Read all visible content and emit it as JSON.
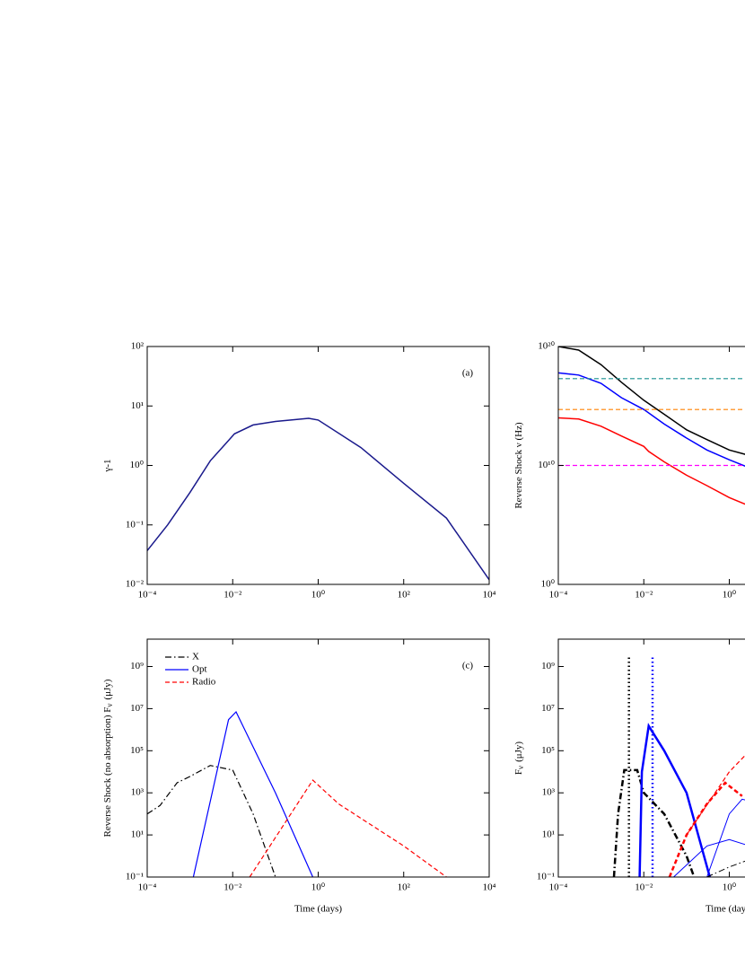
{
  "chart_data": [
    {
      "type": "line",
      "label": "(a)",
      "ylabel": "γ-1",
      "log_x": true,
      "log_y": true,
      "xlim": [
        0.0001,
        10000
      ],
      "ylim": [
        0.01,
        100
      ],
      "xticks": [
        {
          "value": 0.0001,
          "label": "10⁻⁴"
        },
        {
          "value": 0.01,
          "label": "10⁻²"
        },
        {
          "value": 1,
          "label": "10⁰"
        },
        {
          "value": 100,
          "label": "10²"
        },
        {
          "value": 10000,
          "label": "10⁴"
        }
      ],
      "yticks": [
        {
          "value": 0.01,
          "label": "10⁻²"
        },
        {
          "value": 0.1,
          "label": "10⁻¹"
        },
        {
          "value": 1,
          "label": "10⁰"
        },
        {
          "value": 10,
          "label": "10¹"
        },
        {
          "value": 100,
          "label": "10²"
        }
      ],
      "series": [
        {
          "color": "#1a1a8c",
          "linestyle": "solid",
          "linewidth": 1.5,
          "x": [
            0.0001,
            0.0003,
            0.001,
            0.003,
            0.011,
            0.03,
            0.1,
            0.6,
            1,
            10,
            100,
            1000,
            10000
          ],
          "values": [
            0.037,
            0.1,
            0.35,
            1.2,
            3.4,
            4.8,
            5.5,
            6.2,
            5.8,
            2,
            0.5,
            0.13,
            0.012
          ]
        }
      ]
    },
    {
      "type": "line",
      "ylabel": "Reverse Shock ν (Hz)",
      "log_x": true,
      "log_y": true,
      "xlim": [
        0.0001,
        10000
      ],
      "ylim": [
        1,
        1e+20
      ],
      "xticks": [
        {
          "value": 0.0001,
          "label": "10⁻⁴"
        },
        {
          "value": 0.01,
          "label": "10⁻²"
        },
        {
          "value": 1,
          "label": "10⁰"
        }
      ],
      "yticks": [
        {
          "value": 1,
          "label": "10⁰"
        },
        {
          "value": 10000000000,
          "label": "10¹⁰"
        },
        {
          "value": 1e+20,
          "label": "10²⁰"
        }
      ],
      "series": [
        {
          "color": "#000000",
          "linestyle": "solid",
          "linewidth": 1.5,
          "x": [
            0.0001,
            0.0003,
            0.001,
            0.003,
            0.01,
            0.03,
            0.1,
            0.3,
            1,
            2.5
          ],
          "values": [
            1e+20,
            5e+19,
            3e+18,
            1e+17,
            3000000000000000.0,
            200000000000000.0,
            10000000000000.0,
            1500000000000.0,
            200000000000.0,
            80000000000.0
          ]
        },
        {
          "color": "#0000ff",
          "linestyle": "solid",
          "linewidth": 1.5,
          "x": [
            0.0001,
            0.0003,
            0.001,
            0.003,
            0.01,
            0.03,
            0.1,
            0.3,
            1,
            2.5
          ],
          "values": [
            6e+17,
            4e+17,
            8e+16,
            5000000000000000.0,
            500000000000000.0,
            30000000000000.0,
            2000000000000.0,
            200000000000.0,
            30000000000.0,
            8000000000.0
          ]
        },
        {
          "color": "#ff0000",
          "linestyle": "solid",
          "linewidth": 1.5,
          "x": [
            0.0001,
            0.0003,
            0.001,
            0.003,
            0.01,
            0.013,
            0.03,
            0.1,
            0.3,
            1,
            2.5
          ],
          "values": [
            100000000000000.0,
            80000000000000.0,
            20000000000000.0,
            3000000000000.0,
            400000000000.0,
            150000000000.0,
            20000000000.0,
            1500000000.0,
            200000000.0,
            20000000.0,
            5000000.0
          ]
        },
        {
          "color": "#1a9090",
          "linestyle": "dashed",
          "linewidth": 1.2,
          "x": [
            0.0001,
            2.5
          ],
          "values": [
            2e+17,
            2e+17
          ]
        },
        {
          "color": "#ff8000",
          "linestyle": "dashed",
          "linewidth": 1.2,
          "x": [
            0.0001,
            2.5
          ],
          "values": [
            500000000000000.0,
            500000000000000.0
          ]
        },
        {
          "color": "#ff00ff",
          "linestyle": "dashed",
          "linewidth": 1.2,
          "x": [
            0.0001,
            2.5
          ],
          "values": [
            10000000000.0,
            10000000000.0
          ]
        }
      ]
    },
    {
      "type": "line",
      "label": "(c)",
      "xlabel": "Time (days)",
      "ylabel": "Reverse Shock (no absorption) F",
      "ylabel_sub": "ν",
      "ylabel_unit": "(μJy)",
      "log_x": true,
      "log_y": true,
      "xlim": [
        0.0001,
        10000
      ],
      "ylim": [
        0.1,
        20000000000
      ],
      "legend": "upper left",
      "xticks": [
        {
          "value": 0.0001,
          "label": "10⁻⁴"
        },
        {
          "value": 0.01,
          "label": "10⁻²"
        },
        {
          "value": 1,
          "label": "10⁰"
        },
        {
          "value": 100,
          "label": "10²"
        },
        {
          "value": 10000,
          "label": "10⁴"
        }
      ],
      "yticks": [
        {
          "value": 0.1,
          "label": "10⁻¹"
        },
        {
          "value": 10,
          "label": "10¹"
        },
        {
          "value": 1000,
          "label": "10³"
        },
        {
          "value": 100000,
          "label": "10⁵"
        },
        {
          "value": 10000000,
          "label": "10⁷"
        },
        {
          "value": 1000000000,
          "label": "10⁹"
        }
      ],
      "series": [
        {
          "name": "X",
          "color": "#000000",
          "linestyle": "dashdot",
          "linewidth": 1.2,
          "x": [
            0.0001,
            0.0002,
            0.0005,
            0.001,
            0.003,
            0.01,
            0.03,
            0.1
          ],
          "values": [
            100,
            250,
            3000,
            6000,
            20000,
            12000,
            100,
            0.1
          ]
        },
        {
          "name": "Opt",
          "color": "#0000ff",
          "linestyle": "solid",
          "linewidth": 1.2,
          "x": [
            0.0012,
            0.008,
            0.012,
            0.1,
            0.75
          ],
          "values": [
            0.1,
            3000000,
            7000000,
            1000,
            0.1
          ]
        },
        {
          "name": "Radio",
          "color": "#ff0000",
          "linestyle": "dashed",
          "linewidth": 1.2,
          "x": [
            0.025,
            0.75,
            3,
            100,
            1000
          ],
          "values": [
            0.1,
            4000,
            300,
            3,
            0.1
          ]
        }
      ]
    },
    {
      "type": "line",
      "xlabel": "Time (days)",
      "ylabel": "F",
      "ylabel_sub": "ν",
      "ylabel_unit": "(μJy)",
      "log_x": true,
      "log_y": true,
      "xlim": [
        0.0001,
        10000
      ],
      "ylim": [
        0.1,
        20000000000
      ],
      "xticks": [
        {
          "value": 0.0001,
          "label": "10⁻⁴"
        },
        {
          "value": 0.01,
          "label": "10⁻²"
        },
        {
          "value": 1,
          "label": "10⁰"
        }
      ],
      "yticks": [
        {
          "value": 0.1,
          "label": "10⁻¹"
        },
        {
          "value": 10,
          "label": "10¹"
        },
        {
          "value": 1000,
          "label": "10³"
        },
        {
          "value": 100000,
          "label": "10⁵"
        },
        {
          "value": 10000000,
          "label": "10⁷"
        },
        {
          "value": 1000000000,
          "label": "10⁹"
        }
      ],
      "series": [
        {
          "color": "#000000",
          "linestyle": "dotted",
          "linewidth": 2.5,
          "x": [
            0.0045,
            0.0045
          ],
          "values": [
            0.1,
            3000000000
          ]
        },
        {
          "color": "#0000ff",
          "linestyle": "dotted",
          "linewidth": 2.5,
          "x": [
            0.016,
            0.016
          ],
          "values": [
            0.1,
            3000000000
          ]
        },
        {
          "color": "#000000",
          "linestyle": "dashdot",
          "linewidth": 2.5,
          "x": [
            0.002,
            0.0025,
            0.0035,
            0.007,
            0.01,
            0.03,
            0.1,
            0.15
          ],
          "values": [
            0.1,
            100,
            12000,
            12000,
            1000,
            100,
            1,
            0.1
          ]
        },
        {
          "color": "#0000ff",
          "linestyle": "solid",
          "linewidth": 2.5,
          "x": [
            0.008,
            0.009,
            0.013,
            0.03,
            0.1,
            0.35
          ],
          "values": [
            0.1,
            10000,
            1500000,
            100000,
            1000,
            0.1
          ]
        },
        {
          "color": "#ff0000",
          "linestyle": "dashed",
          "linewidth": 2.5,
          "x": [
            0.04,
            0.1,
            0.3,
            0.8,
            2
          ],
          "values": [
            0.1,
            10,
            300,
            3000,
            700
          ]
        },
        {
          "color": "#ff0000",
          "linestyle": "dashed",
          "linewidth": 1.2,
          "x": [
            0.1,
            1,
            3
          ],
          "values": [
            10,
            10000,
            100000
          ]
        },
        {
          "color": "#0000ff",
          "linestyle": "solid",
          "linewidth": 1,
          "x": [
            0.05,
            0.3,
            1,
            3
          ],
          "values": [
            0.1,
            3,
            6,
            3
          ]
        },
        {
          "color": "#0000ff",
          "linestyle": "solid",
          "linewidth": 1,
          "x": [
            0.3,
            1,
            2,
            3
          ],
          "values": [
            0.1,
            100,
            500,
            400
          ]
        },
        {
          "color": "#000000",
          "linestyle": "dashdot",
          "linewidth": 1,
          "x": [
            0.3,
            1,
            2.5
          ],
          "values": [
            0.1,
            0.3,
            0.6
          ]
        }
      ]
    }
  ]
}
